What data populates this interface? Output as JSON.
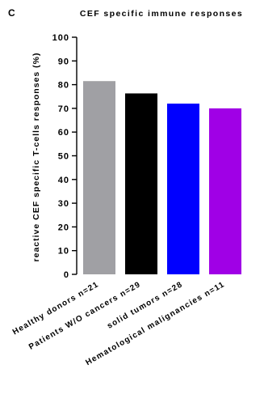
{
  "panel_label": "C",
  "chart_data": {
    "type": "bar",
    "title": "CEF specific immune responses",
    "ylabel": "reactive CEF specific T-cells responses (%)",
    "xlabel": "",
    "ylim": [
      0,
      100
    ],
    "yticks": [
      0,
      10,
      20,
      30,
      40,
      50,
      60,
      70,
      80,
      90,
      100
    ],
    "categories": [
      "Healthy donors n=21",
      "Patients W/O cancers n=29",
      "solid tumors n=28",
      "Hematological malignancies n=11"
    ],
    "values": [
      81.5,
      76.3,
      72.0,
      70.0
    ],
    "colors": [
      "#a0a0a4",
      "#000000",
      "#0000ff",
      "#a000e6"
    ],
    "grid": false,
    "legend": "none"
  }
}
